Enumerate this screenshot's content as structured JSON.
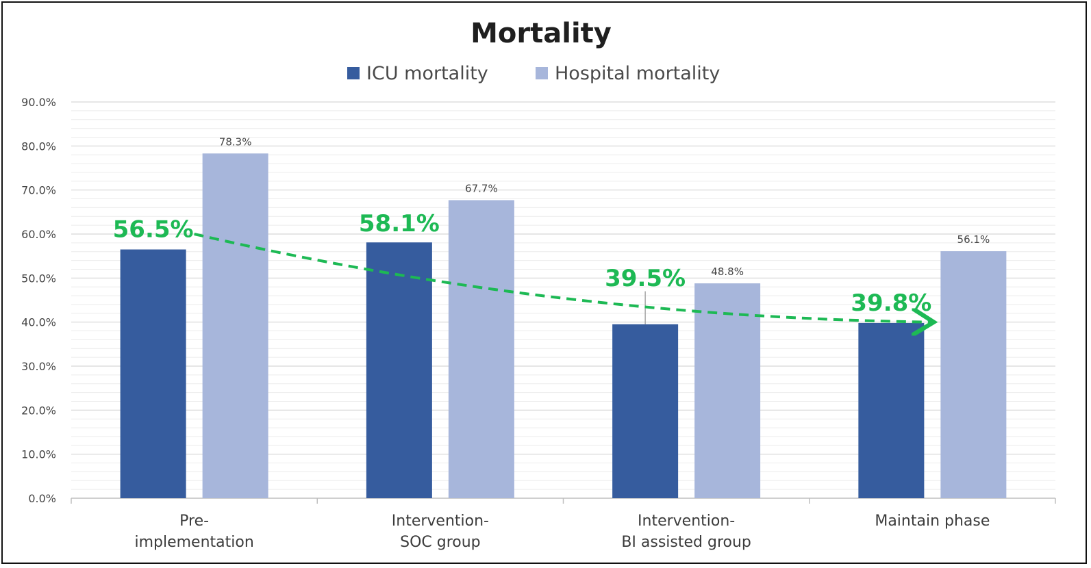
{
  "chart_data": {
    "type": "bar",
    "title": "Mortality",
    "categories": [
      [
        "Pre-",
        "implementation"
      ],
      [
        "Intervention-",
        "SOC group"
      ],
      [
        "Intervention-",
        "BI assisted group"
      ],
      [
        "Maintain phase"
      ]
    ],
    "series": [
      {
        "name": "ICU mortality",
        "color": "#365c9e",
        "values": [
          56.5,
          58.1,
          39.5,
          39.8
        ],
        "labels": [
          "56.5%",
          "58.1%",
          "39.5%",
          "39.8%"
        ],
        "label_color": "#1db954"
      },
      {
        "name": "Hospital mortality",
        "color": "#a7b6db",
        "values": [
          78.3,
          67.7,
          48.8,
          56.1
        ],
        "labels": [
          "78.3%",
          "67.7%",
          "48.8%",
          "56.1%"
        ]
      }
    ],
    "ylim": [
      0,
      90
    ],
    "yticks": [
      "0.0%",
      "10.0%",
      "20.0%",
      "30.0%",
      "40.0%",
      "50.0%",
      "60.0%",
      "70.0%",
      "80.0%",
      "90.0%"
    ],
    "xlabel": "",
    "ylabel": "",
    "legend_position": "top",
    "grid": true,
    "trend_arrow": {
      "style": "dashed",
      "color": "#1db954",
      "from_category": 0,
      "to_category": 3
    },
    "error_bar": {
      "category": 2,
      "series": 0,
      "upper": 47
    }
  }
}
